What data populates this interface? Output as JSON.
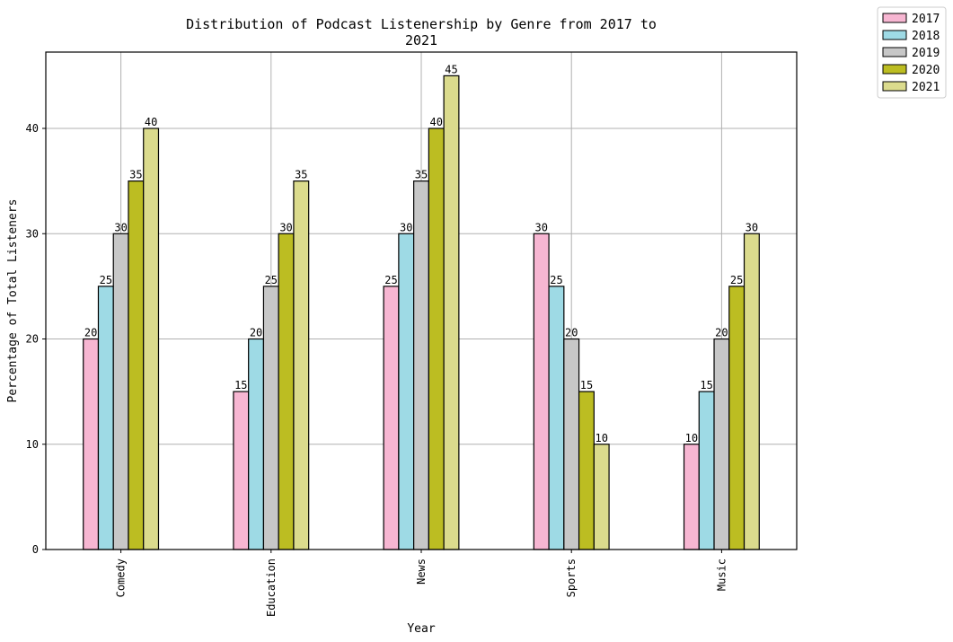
{
  "chart_data": {
    "type": "bar",
    "title_line1": "Distribution of Podcast Listenership by Genre from 2017 to",
    "title_line2": "2021",
    "xlabel": "Year",
    "ylabel": "Percentage of Total Listeners",
    "categories": [
      "Comedy",
      "Education",
      "News",
      "Sports",
      "Music"
    ],
    "series": [
      {
        "name": "2017",
        "color": "#f7b6d2",
        "values": [
          20,
          15,
          25,
          30,
          10
        ]
      },
      {
        "name": "2018",
        "color": "#9edae5",
        "values": [
          25,
          20,
          30,
          25,
          15
        ]
      },
      {
        "name": "2019",
        "color": "#c7c7c7",
        "values": [
          30,
          25,
          35,
          20,
          20
        ]
      },
      {
        "name": "2020",
        "color": "#bcbd22",
        "values": [
          35,
          30,
          40,
          15,
          25
        ]
      },
      {
        "name": "2021",
        "color": "#dbdb8d",
        "values": [
          40,
          35,
          45,
          10,
          30
        ]
      }
    ],
    "yticks": [
      0,
      10,
      20,
      30,
      40
    ],
    "ylim": [
      0,
      47.25
    ],
    "grid": true,
    "legend_position": "top-right (outside plot)"
  }
}
